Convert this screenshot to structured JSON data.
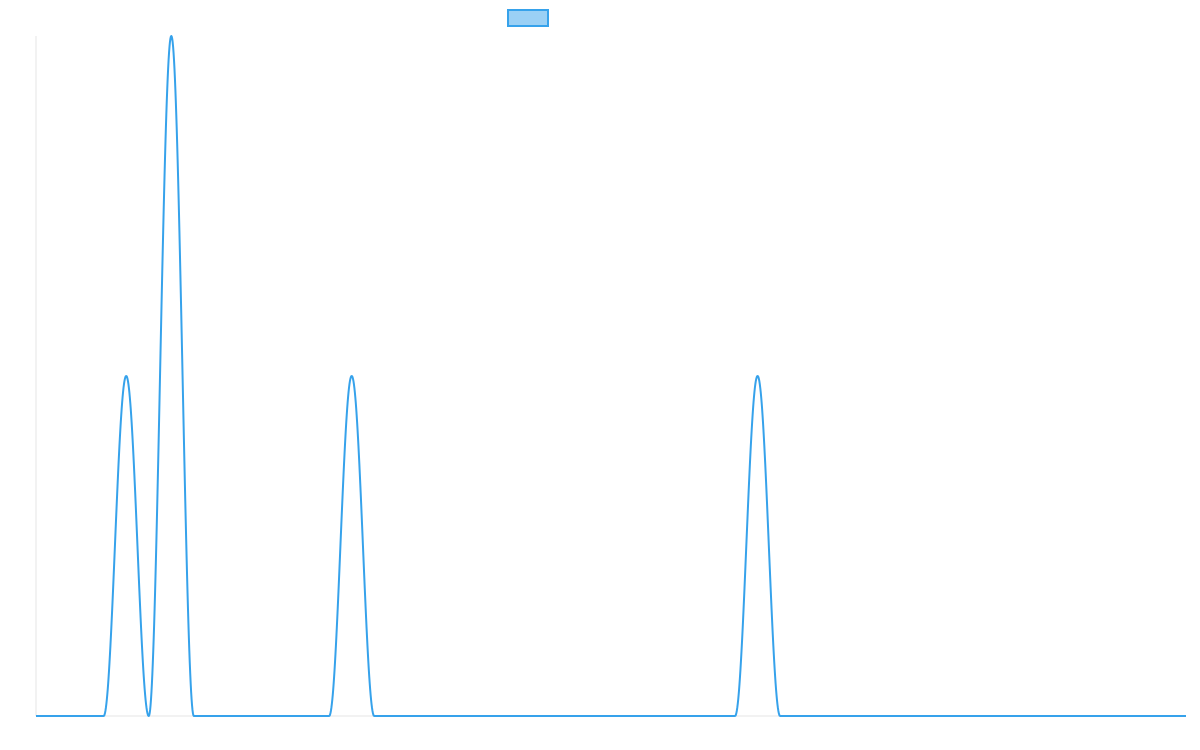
{
  "chart_data": {
    "type": "line",
    "title": "",
    "xlabel": "",
    "ylabel": "",
    "legend": {
      "placement": "top-center",
      "label": ""
    },
    "grid": false,
    "xlim": [
      0,
      51
    ],
    "ylim": [
      0,
      2
    ],
    "colors": {
      "line": "#36a2eb",
      "legend_fill": "#9ad0f5",
      "axis": "#e5e5e5"
    },
    "series": [
      {
        "name": "",
        "peaks": [
          {
            "x_start": 3,
            "x_end": 5,
            "height": 1
          },
          {
            "x_start": 5,
            "x_end": 7,
            "height": 2
          },
          {
            "x_start": 13,
            "x_end": 15,
            "height": 1
          },
          {
            "x_start": 31,
            "x_end": 33,
            "height": 1
          }
        ]
      }
    ]
  }
}
